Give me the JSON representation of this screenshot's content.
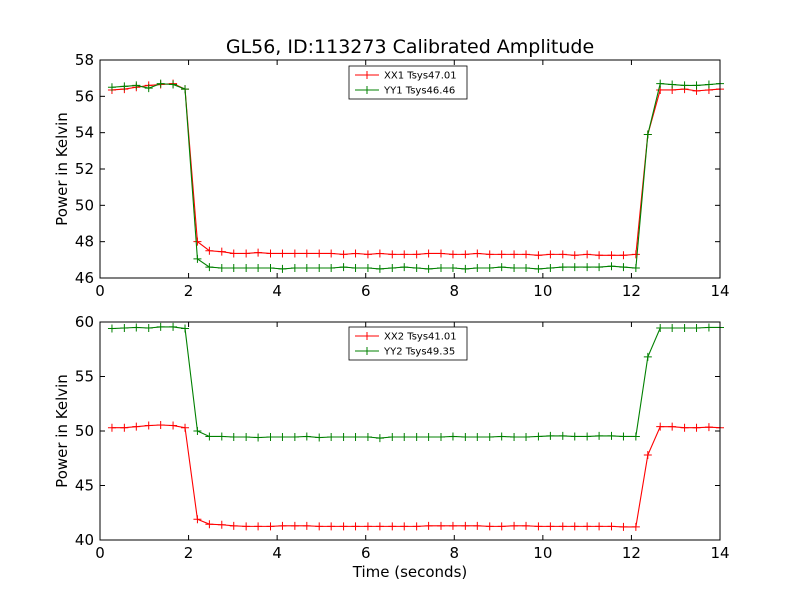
{
  "figure_title": "GL56, ID:113273 Calibrated Amplitude",
  "chart_data": [
    {
      "type": "line",
      "title": "GL56, ID:113273 Calibrated Amplitude",
      "xlabel": "",
      "ylabel": "Power in Kelvin",
      "xlim": [
        0,
        14
      ],
      "ylim": [
        46,
        58
      ],
      "xticks": [
        "0",
        "2",
        "4",
        "6",
        "8",
        "10",
        "12",
        "14"
      ],
      "yticks": [
        "46",
        "48",
        "50",
        "52",
        "54",
        "56",
        "58"
      ],
      "legend": "top-center",
      "grid": false,
      "x": [
        0.27,
        0.55,
        0.82,
        1.1,
        1.37,
        1.65,
        1.92,
        2.2,
        2.47,
        2.75,
        3.02,
        3.3,
        3.57,
        3.85,
        4.12,
        4.4,
        4.67,
        4.95,
        5.22,
        5.5,
        5.77,
        6.05,
        6.32,
        6.6,
        6.87,
        7.15,
        7.42,
        7.7,
        7.97,
        8.25,
        8.52,
        8.8,
        9.07,
        9.35,
        9.62,
        9.9,
        10.17,
        10.45,
        10.72,
        11.0,
        11.27,
        11.55,
        11.82,
        12.1,
        12.37,
        12.65,
        12.92,
        13.2,
        13.47,
        13.75,
        14.0
      ],
      "series": [
        {
          "name": "XX1 Tsys47.01",
          "color": "#ff0000",
          "values": [
            56.35,
            56.4,
            56.5,
            56.6,
            56.65,
            56.7,
            56.4,
            48.0,
            47.5,
            47.45,
            47.35,
            47.35,
            47.4,
            47.35,
            47.35,
            47.35,
            47.35,
            47.35,
            47.35,
            47.3,
            47.35,
            47.3,
            47.35,
            47.3,
            47.3,
            47.3,
            47.35,
            47.35,
            47.3,
            47.3,
            47.35,
            47.3,
            47.3,
            47.3,
            47.3,
            47.25,
            47.3,
            47.3,
            47.25,
            47.3,
            47.25,
            47.25,
            47.25,
            47.3,
            53.9,
            56.35,
            56.35,
            56.4,
            56.3,
            56.35,
            56.4
          ]
        },
        {
          "name": "YY1 Tsys46.46",
          "color": "#008000",
          "values": [
            56.5,
            56.55,
            56.6,
            56.45,
            56.7,
            56.65,
            56.4,
            47.05,
            46.6,
            46.55,
            46.55,
            46.55,
            46.55,
            46.55,
            46.5,
            46.55,
            46.55,
            46.55,
            46.55,
            46.6,
            46.55,
            46.55,
            46.5,
            46.55,
            46.6,
            46.55,
            46.5,
            46.55,
            46.55,
            46.5,
            46.55,
            46.55,
            46.6,
            46.55,
            46.55,
            46.5,
            46.55,
            46.6,
            46.6,
            46.6,
            46.6,
            46.65,
            46.6,
            46.55,
            53.9,
            56.7,
            56.65,
            56.6,
            56.6,
            56.65,
            56.7
          ]
        }
      ]
    },
    {
      "type": "line",
      "title": "",
      "xlabel": "Time (seconds)",
      "ylabel": "Power in Kelvin",
      "xlim": [
        0,
        14
      ],
      "ylim": [
        40,
        60
      ],
      "xticks": [
        "0",
        "2",
        "4",
        "6",
        "8",
        "10",
        "12",
        "14"
      ],
      "yticks": [
        "40",
        "45",
        "50",
        "55",
        "60"
      ],
      "legend": "top-center",
      "grid": false,
      "x": [
        0.27,
        0.55,
        0.82,
        1.1,
        1.37,
        1.65,
        1.92,
        2.2,
        2.47,
        2.75,
        3.02,
        3.3,
        3.57,
        3.85,
        4.12,
        4.4,
        4.67,
        4.95,
        5.22,
        5.5,
        5.77,
        6.05,
        6.32,
        6.6,
        6.87,
        7.15,
        7.42,
        7.7,
        7.97,
        8.25,
        8.52,
        8.8,
        9.07,
        9.35,
        9.62,
        9.9,
        10.17,
        10.45,
        10.72,
        11.0,
        11.27,
        11.55,
        11.82,
        12.1,
        12.37,
        12.65,
        12.92,
        13.2,
        13.47,
        13.75,
        14.0
      ],
      "series": [
        {
          "name": "XX2 Tsys41.01",
          "color": "#ff0000",
          "values": [
            50.3,
            50.3,
            50.4,
            50.5,
            50.55,
            50.5,
            50.3,
            41.9,
            41.45,
            41.4,
            41.3,
            41.25,
            41.25,
            41.25,
            41.3,
            41.3,
            41.3,
            41.25,
            41.25,
            41.25,
            41.25,
            41.25,
            41.25,
            41.25,
            41.25,
            41.25,
            41.3,
            41.3,
            41.3,
            41.3,
            41.3,
            41.25,
            41.25,
            41.3,
            41.3,
            41.25,
            41.25,
            41.25,
            41.25,
            41.25,
            41.25,
            41.25,
            41.2,
            41.2,
            47.8,
            50.4,
            50.4,
            50.3,
            50.3,
            50.35,
            50.3
          ]
        },
        {
          "name": "YY2 Tsys49.35",
          "color": "#008000",
          "values": [
            59.4,
            59.45,
            59.5,
            59.45,
            59.55,
            59.55,
            59.4,
            50.0,
            49.5,
            49.5,
            49.45,
            49.45,
            49.4,
            49.45,
            49.45,
            49.45,
            49.5,
            49.4,
            49.45,
            49.45,
            49.45,
            49.45,
            49.35,
            49.45,
            49.45,
            49.45,
            49.45,
            49.45,
            49.5,
            49.45,
            49.45,
            49.45,
            49.5,
            49.45,
            49.45,
            49.5,
            49.55,
            49.55,
            49.5,
            49.5,
            49.55,
            49.55,
            49.5,
            49.5,
            56.8,
            59.45,
            59.45,
            59.45,
            59.45,
            59.5,
            59.5
          ]
        }
      ]
    }
  ]
}
